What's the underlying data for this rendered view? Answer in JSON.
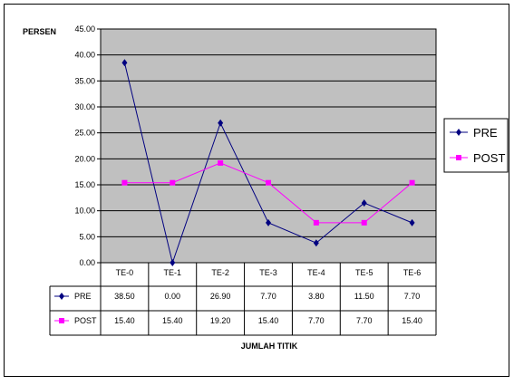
{
  "chart_data": {
    "type": "line",
    "ylabel": "PERSEN",
    "xlabel": "JUMLAH TITIK",
    "categories": [
      "TE-0",
      "TE-1",
      "TE-2",
      "TE-3",
      "TE-4",
      "TE-5",
      "TE-6"
    ],
    "ylim": [
      0,
      45
    ],
    "ytick_labels": [
      "0.00",
      "5.00",
      "10.00",
      "15.00",
      "20.00",
      "25.00",
      "30.00",
      "35.00",
      "40.00",
      "45.00"
    ],
    "grid": true,
    "legend_position": "right",
    "series": [
      {
        "name": "PRE",
        "values": [
          38.5,
          0.0,
          26.9,
          7.7,
          3.8,
          11.5,
          7.7
        ],
        "labels": [
          "38.50",
          "0.00",
          "26.90",
          "7.70",
          "3.80",
          "11.50",
          "7.70"
        ],
        "color": "#000080",
        "marker": "diamond"
      },
      {
        "name": "POST",
        "values": [
          15.4,
          15.4,
          19.2,
          15.4,
          7.7,
          7.7,
          15.4
        ],
        "labels": [
          "15.40",
          "15.40",
          "19.20",
          "15.40",
          "7.70",
          "7.70",
          "15.40"
        ],
        "color": "#ff00ff",
        "marker": "square"
      }
    ],
    "plot_background": "#c0c0c0"
  }
}
